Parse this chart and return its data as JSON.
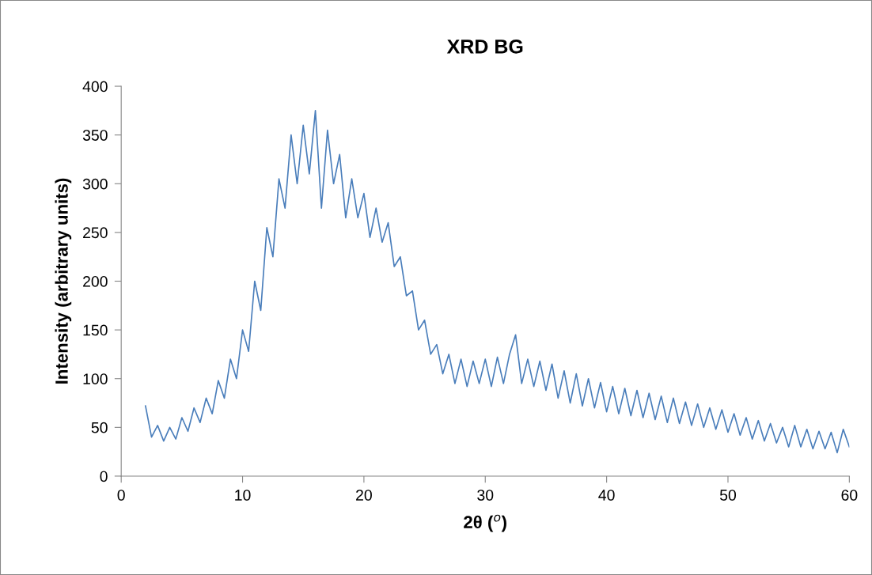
{
  "chart_data": {
    "type": "line",
    "title": "XRD BG",
    "xlabel": "2θ ($^{o}$)",
    "ylabel": "Intensity (arbitrary units)",
    "xlim": [
      0,
      60
    ],
    "xticks": [
      0,
      10,
      20,
      30,
      40,
      50,
      60
    ],
    "ylim": [
      0,
      400
    ],
    "yticks": [
      0,
      50,
      100,
      150,
      200,
      250,
      300,
      350,
      400
    ],
    "grid": false,
    "legend": false,
    "series": [
      {
        "color": "#4a7ebb",
        "x": [
          2,
          2.5,
          3,
          3.5,
          4,
          4.5,
          5,
          5.5,
          6,
          6.5,
          7,
          7.5,
          8,
          8.5,
          9,
          9.5,
          10,
          10.5,
          11,
          11.5,
          12,
          12.5,
          13,
          13.5,
          14,
          14.5,
          15,
          15.5,
          16,
          16.5,
          17,
          17.5,
          18,
          18.5,
          19,
          19.5,
          20,
          20.5,
          21,
          21.5,
          22,
          22.5,
          23,
          23.5,
          24,
          24.5,
          25,
          25.5,
          26,
          26.5,
          27,
          27.5,
          28,
          28.5,
          29,
          29.5,
          30,
          30.5,
          31,
          31.5,
          32,
          32.5,
          33,
          33.5,
          34,
          34.5,
          35,
          35.5,
          36,
          36.5,
          37,
          37.5,
          38,
          38.5,
          39,
          39.5,
          40,
          40.5,
          41,
          41.5,
          42,
          42.5,
          43,
          43.5,
          44,
          44.5,
          45,
          45.5,
          46,
          46.5,
          47,
          47.5,
          48,
          48.5,
          49,
          49.5,
          50,
          50.5,
          51,
          51.5,
          52,
          52.5,
          53,
          53.5,
          54,
          54.5,
          55,
          55.5,
          56,
          56.5,
          57,
          57.5,
          58,
          58.5,
          59,
          59.5,
          60
        ],
        "values": [
          72,
          40,
          52,
          36,
          50,
          38,
          60,
          46,
          70,
          55,
          80,
          64,
          98,
          80,
          120,
          100,
          150,
          128,
          200,
          170,
          255,
          225,
          305,
          275,
          350,
          300,
          360,
          310,
          375,
          275,
          355,
          300,
          330,
          265,
          305,
          265,
          290,
          245,
          275,
          240,
          260,
          215,
          225,
          185,
          190,
          150,
          160,
          125,
          135,
          105,
          125,
          95,
          120,
          92,
          118,
          95,
          120,
          92,
          122,
          95,
          125,
          145,
          95,
          120,
          92,
          118,
          88,
          115,
          80,
          108,
          75,
          105,
          72,
          100,
          70,
          96,
          66,
          92,
          64,
          90,
          62,
          88,
          60,
          85,
          58,
          82,
          55,
          80,
          54,
          76,
          52,
          74,
          50,
          70,
          48,
          68,
          45,
          64,
          42,
          60,
          38,
          57,
          36,
          54,
          34,
          50,
          30,
          52,
          30,
          48,
          28,
          46,
          28,
          45,
          24,
          48,
          30
        ]
      }
    ]
  }
}
